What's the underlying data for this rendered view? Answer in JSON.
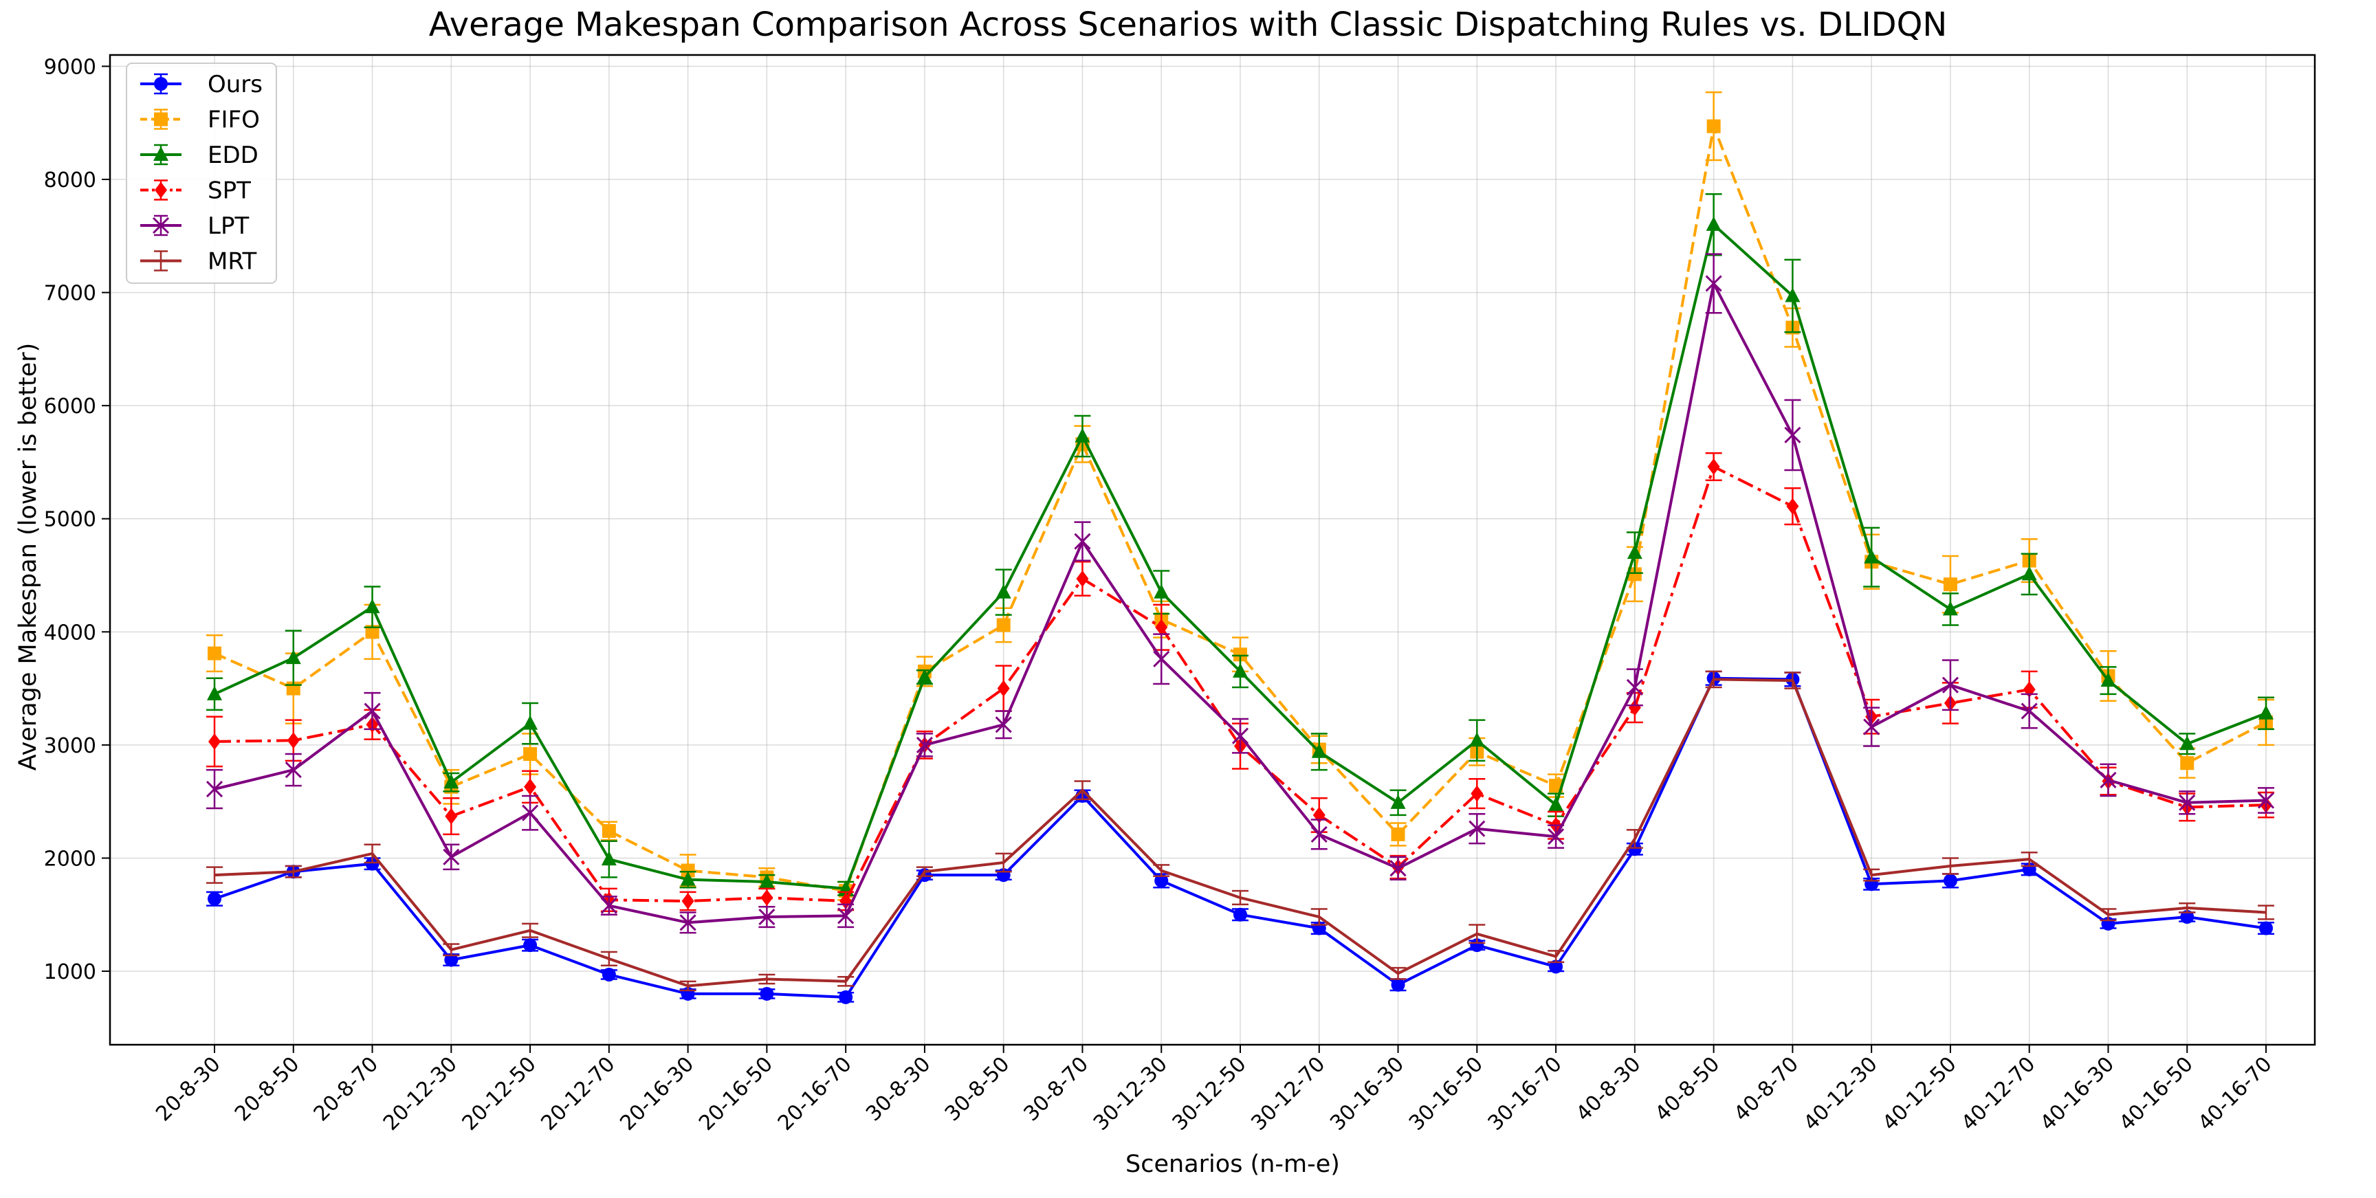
{
  "chart_data": {
    "type": "line",
    "title": "Average Makespan Comparison Across Scenarios with Classic Dispatching Rules vs. DLIDQN",
    "xlabel": "Scenarios (n-m-e)",
    "ylabel": "Average Makespan (lower is better)",
    "ylim": [
      350,
      9100
    ],
    "yticks": [
      1000,
      2000,
      3000,
      4000,
      5000,
      6000,
      7000,
      8000,
      9000
    ],
    "grid": true,
    "legend_position": "top-left",
    "categories": [
      "20-8-30",
      "20-8-50",
      "20-8-70",
      "20-12-30",
      "20-12-50",
      "20-12-70",
      "20-16-30",
      "20-16-50",
      "20-16-70",
      "30-8-30",
      "30-8-50",
      "30-8-70",
      "30-12-30",
      "30-12-50",
      "30-12-70",
      "30-16-30",
      "30-16-50",
      "30-16-70",
      "40-8-30",
      "40-8-50",
      "40-8-70",
      "40-12-30",
      "40-12-50",
      "40-12-70",
      "40-16-30",
      "40-16-50",
      "40-16-70"
    ],
    "series": [
      {
        "name": "Ours",
        "color": "#0000ff",
        "linestyle": "solid",
        "marker": "circle",
        "values": [
          1640,
          1880,
          1950,
          1100,
          1230,
          970,
          800,
          800,
          770,
          1850,
          1850,
          2550,
          1800,
          1500,
          1380,
          880,
          1230,
          1040,
          2080,
          3590,
          3580,
          1770,
          1800,
          1900,
          1420,
          1480,
          1380
        ],
        "errors": [
          60,
          50,
          50,
          50,
          50,
          40,
          40,
          40,
          40,
          40,
          40,
          50,
          60,
          50,
          50,
          50,
          40,
          40,
          50,
          60,
          60,
          50,
          60,
          50,
          40,
          40,
          50
        ]
      },
      {
        "name": "FIFO",
        "color": "#ffa500",
        "linestyle": "dashed",
        "marker": "square",
        "values": [
          3810,
          3500,
          4000,
          2630,
          2920,
          2240,
          1890,
          1830,
          1710,
          3650,
          4060,
          5660,
          4110,
          3800,
          2960,
          2210,
          2940,
          2640,
          4510,
          8470,
          6690,
          4620,
          4420,
          4630,
          3610,
          2840,
          3200
        ],
        "errors": [
          160,
          310,
          240,
          150,
          180,
          80,
          140,
          80,
          80,
          130,
          150,
          160,
          160,
          150,
          120,
          100,
          120,
          100,
          240,
          300,
          170,
          240,
          250,
          190,
          220,
          130,
          200
        ]
      },
      {
        "name": "EDD",
        "color": "#008000",
        "linestyle": "solid",
        "marker": "triangle",
        "values": [
          3450,
          3770,
          4220,
          2670,
          3190,
          1990,
          1810,
          1790,
          1730,
          3600,
          4350,
          5730,
          4350,
          3650,
          2940,
          2490,
          3040,
          2470,
          4700,
          7600,
          6970,
          4660,
          4200,
          4510,
          3570,
          3010,
          3280
        ],
        "errors": [
          140,
          240,
          180,
          80,
          180,
          160,
          70,
          60,
          60,
          60,
          200,
          180,
          190,
          140,
          160,
          110,
          180,
          100,
          180,
          270,
          320,
          260,
          140,
          180,
          120,
          90,
          140
        ]
      },
      {
        "name": "SPT",
        "color": "#ff0000",
        "linestyle": "dashdot",
        "marker": "diamond",
        "values": [
          3030,
          3040,
          3180,
          2370,
          2630,
          1630,
          1620,
          1650,
          1620,
          3000,
          3500,
          4470,
          4040,
          2990,
          2380,
          1920,
          2570,
          2290,
          3330,
          5460,
          5110,
          3250,
          3370,
          3490,
          2680,
          2450,
          2470
        ],
        "errors": [
          220,
          180,
          130,
          160,
          140,
          100,
          80,
          80,
          80,
          120,
          200,
          150,
          200,
          200,
          150,
          100,
          130,
          120,
          130,
          120,
          160,
          150,
          180,
          160,
          120,
          120,
          110
        ]
      },
      {
        "name": "LPT",
        "color": "#800080",
        "linestyle": "solid",
        "marker": "x",
        "values": [
          2610,
          2780,
          3300,
          2010,
          2400,
          1580,
          1430,
          1480,
          1490,
          3000,
          3180,
          4800,
          3760,
          3080,
          2210,
          1910,
          2260,
          2190,
          3510,
          7080,
          5740,
          3160,
          3530,
          3300,
          2690,
          2490,
          2510
        ],
        "errors": [
          170,
          140,
          160,
          110,
          150,
          80,
          90,
          90,
          100,
          100,
          120,
          170,
          220,
          150,
          130,
          100,
          130,
          100,
          160,
          260,
          310,
          170,
          220,
          150,
          140,
          100,
          110
        ]
      },
      {
        "name": "MRT",
        "color": "#a52a2a",
        "linestyle": "solid",
        "marker": "none",
        "values": [
          1850,
          1880,
          2040,
          1190,
          1360,
          1110,
          870,
          930,
          910,
          1880,
          1960,
          2600,
          1890,
          1650,
          1480,
          980,
          1330,
          1130,
          2170,
          3580,
          3570,
          1850,
          1930,
          1990,
          1500,
          1560,
          1520
        ],
        "errors": [
          70,
          50,
          80,
          50,
          60,
          60,
          40,
          40,
          40,
          40,
          80,
          80,
          50,
          60,
          70,
          50,
          80,
          50,
          80,
          70,
          70,
          50,
          70,
          60,
          50,
          40,
          60
        ]
      }
    ]
  }
}
